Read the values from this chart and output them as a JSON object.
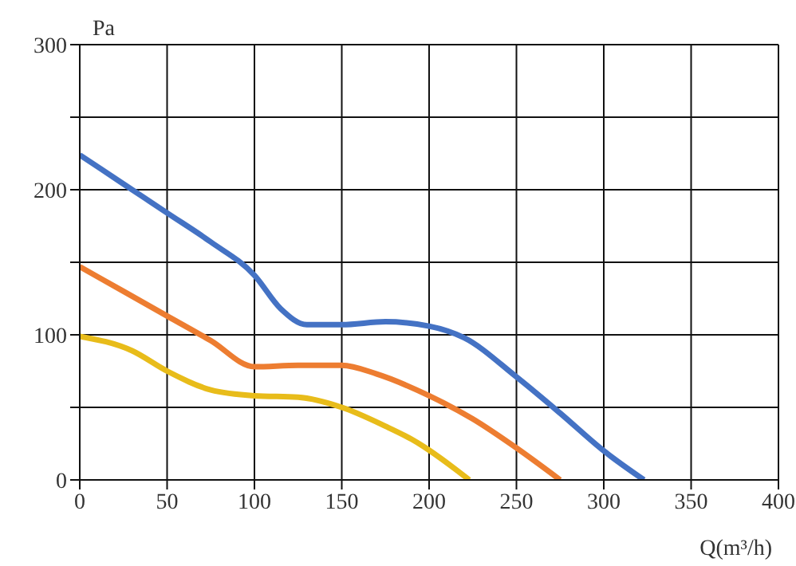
{
  "chart_data": {
    "type": "line",
    "xlabel": "Q(m³/h)",
    "ylabel": "Pa",
    "xlim": [
      0,
      400
    ],
    "xticks": [
      0,
      50,
      100,
      150,
      200,
      250,
      300,
      350,
      400
    ],
    "ylim": [
      0,
      300
    ],
    "yticks": [
      0,
      {
        "value": 50,
        "label": null
      },
      100,
      {
        "value": 150,
        "label": null
      },
      200,
      {
        "value": 250,
        "label": null
      },
      300
    ],
    "grid": true,
    "legend": false,
    "marker": "none",
    "line_style": "solid",
    "series": [
      {
        "color": "#4472c4",
        "x": [
          0,
          25,
          50,
          75,
          100,
          115,
          130,
          150,
          175,
          200,
          220,
          250,
          275,
          300,
          323
        ],
        "values": [
          224,
          204,
          184,
          164,
          141,
          118,
          107,
          107,
          109,
          106,
          98,
          71,
          46,
          20,
          0
        ]
      },
      {
        "color": "#ed7d31",
        "x": [
          0,
          25,
          50,
          75,
          100,
          125,
          150,
          170,
          200,
          225,
          250,
          275
        ],
        "values": [
          147,
          130,
          113,
          96,
          78,
          79,
          79,
          73,
          58,
          42,
          22,
          0
        ]
      },
      {
        "color": "#e8bc1a",
        "x": [
          0,
          30,
          50,
          75,
          100,
          125,
          150,
          175,
          190,
          223
        ],
        "values": [
          99,
          89,
          75,
          62,
          58,
          57,
          50,
          37,
          28,
          0
        ]
      }
    ]
  }
}
